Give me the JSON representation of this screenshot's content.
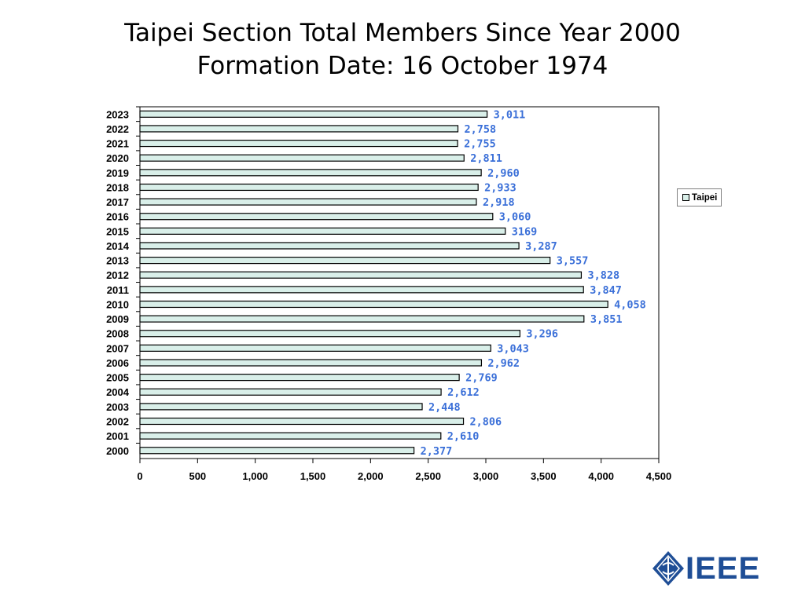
{
  "title_line1": "Taipei Section Total Members Since Year 2000",
  "title_line2": "Formation Date: 16 October 1974",
  "legend_label": "Taipei",
  "logo_text": "IEEE",
  "colors": {
    "bar_fill": "#d9efe9",
    "bar_stroke": "#000000",
    "data_label": "#3a6fd8",
    "logo": "#1f4e96"
  },
  "chart_data": {
    "type": "bar",
    "orientation": "horizontal",
    "categories": [
      "2023",
      "2022",
      "2021",
      "2020",
      "2019",
      "2018",
      "2017",
      "2016",
      "2015",
      "2014",
      "2013",
      "2012",
      "2011",
      "2010",
      "2009",
      "2008",
      "2007",
      "2006",
      "2005",
      "2004",
      "2003",
      "2002",
      "2001",
      "2000"
    ],
    "values": [
      3011,
      2758,
      2755,
      2811,
      2960,
      2933,
      2918,
      3060,
      3169,
      3287,
      3557,
      3828,
      3847,
      4058,
      3851,
      3296,
      3043,
      2962,
      2769,
      2612,
      2448,
      2806,
      2610,
      2377
    ],
    "data_labels": [
      "3,011",
      "2,758",
      "2,755",
      "2,811",
      "2,960",
      "2,933",
      "2,918",
      "3,060",
      "3169",
      "3,287",
      "3,557",
      "3,828",
      "3,847",
      "4,058",
      "3,851",
      "3,296",
      "3,043",
      "2,962",
      "2,769",
      "2,612",
      "2,448",
      "2,806",
      "2,610",
      "2,377"
    ],
    "x_ticks": [
      "0",
      "500",
      "1,000",
      "1,500",
      "2,000",
      "2,500",
      "3,000",
      "3,500",
      "4,000",
      "4,500"
    ],
    "xlim": [
      0,
      4500
    ],
    "series": [
      {
        "name": "Taipei"
      }
    ],
    "legend_position": "right",
    "grid": false
  }
}
